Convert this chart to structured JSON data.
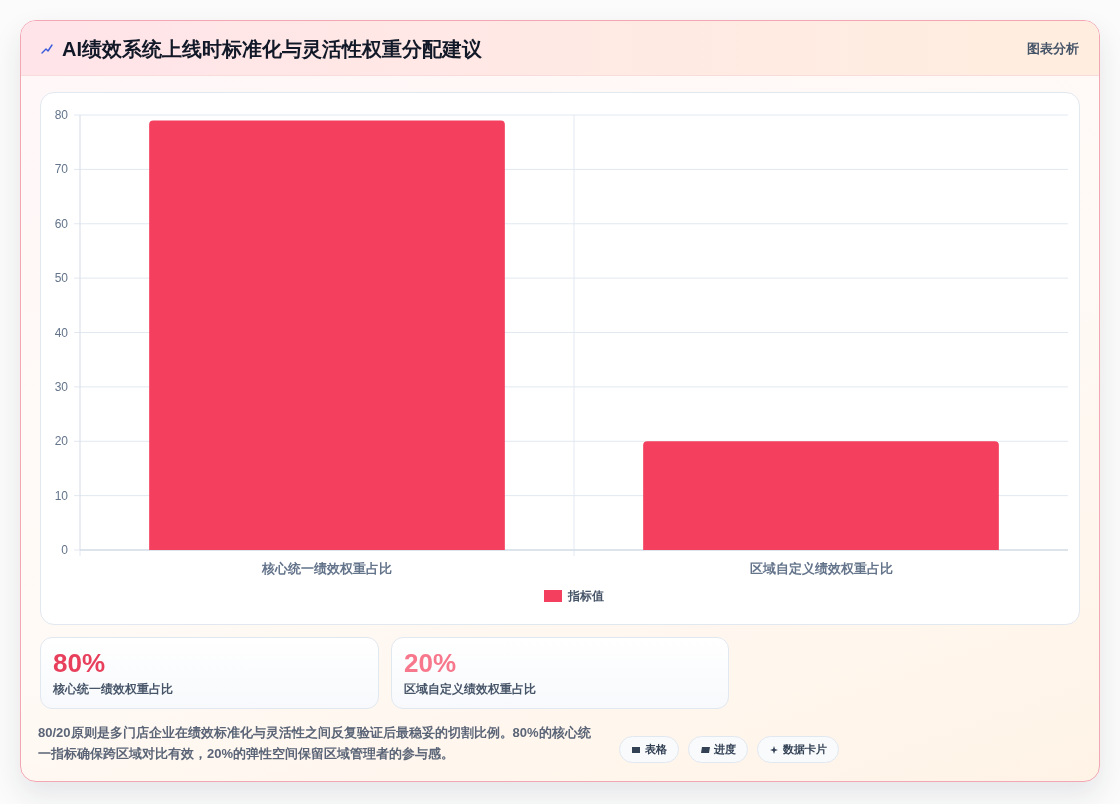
{
  "chart_data": {
    "type": "bar",
    "title": "AI绩效系统上线时标准化与灵活性权重分配建议",
    "categories": [
      "核心统一绩效权重占比",
      "区域自定义绩效权重占比"
    ],
    "series": [
      {
        "name": "指标值",
        "color": "#f43f5e",
        "values": [
          79,
          20
        ]
      }
    ],
    "ylim": [
      0,
      80
    ],
    "yticks": [
      0,
      10,
      20,
      30,
      40,
      50,
      60,
      70,
      80
    ],
    "grid": true,
    "legend": "bottom",
    "annotations": [
      "图表分析",
      "80%",
      "核心统一绩效权重占比",
      "20%",
      "区域自定义绩效权重占比",
      "80/20原则是多门店企业在绩效标准化与灵活性之间反复验证后最稳妥的切割比例。80%的核心统一指标确保跨区域对比有效，20%的弹性空间保留区域管理者的参与感。",
      "表格",
      "进度",
      "数据卡片"
    ]
  }
}
